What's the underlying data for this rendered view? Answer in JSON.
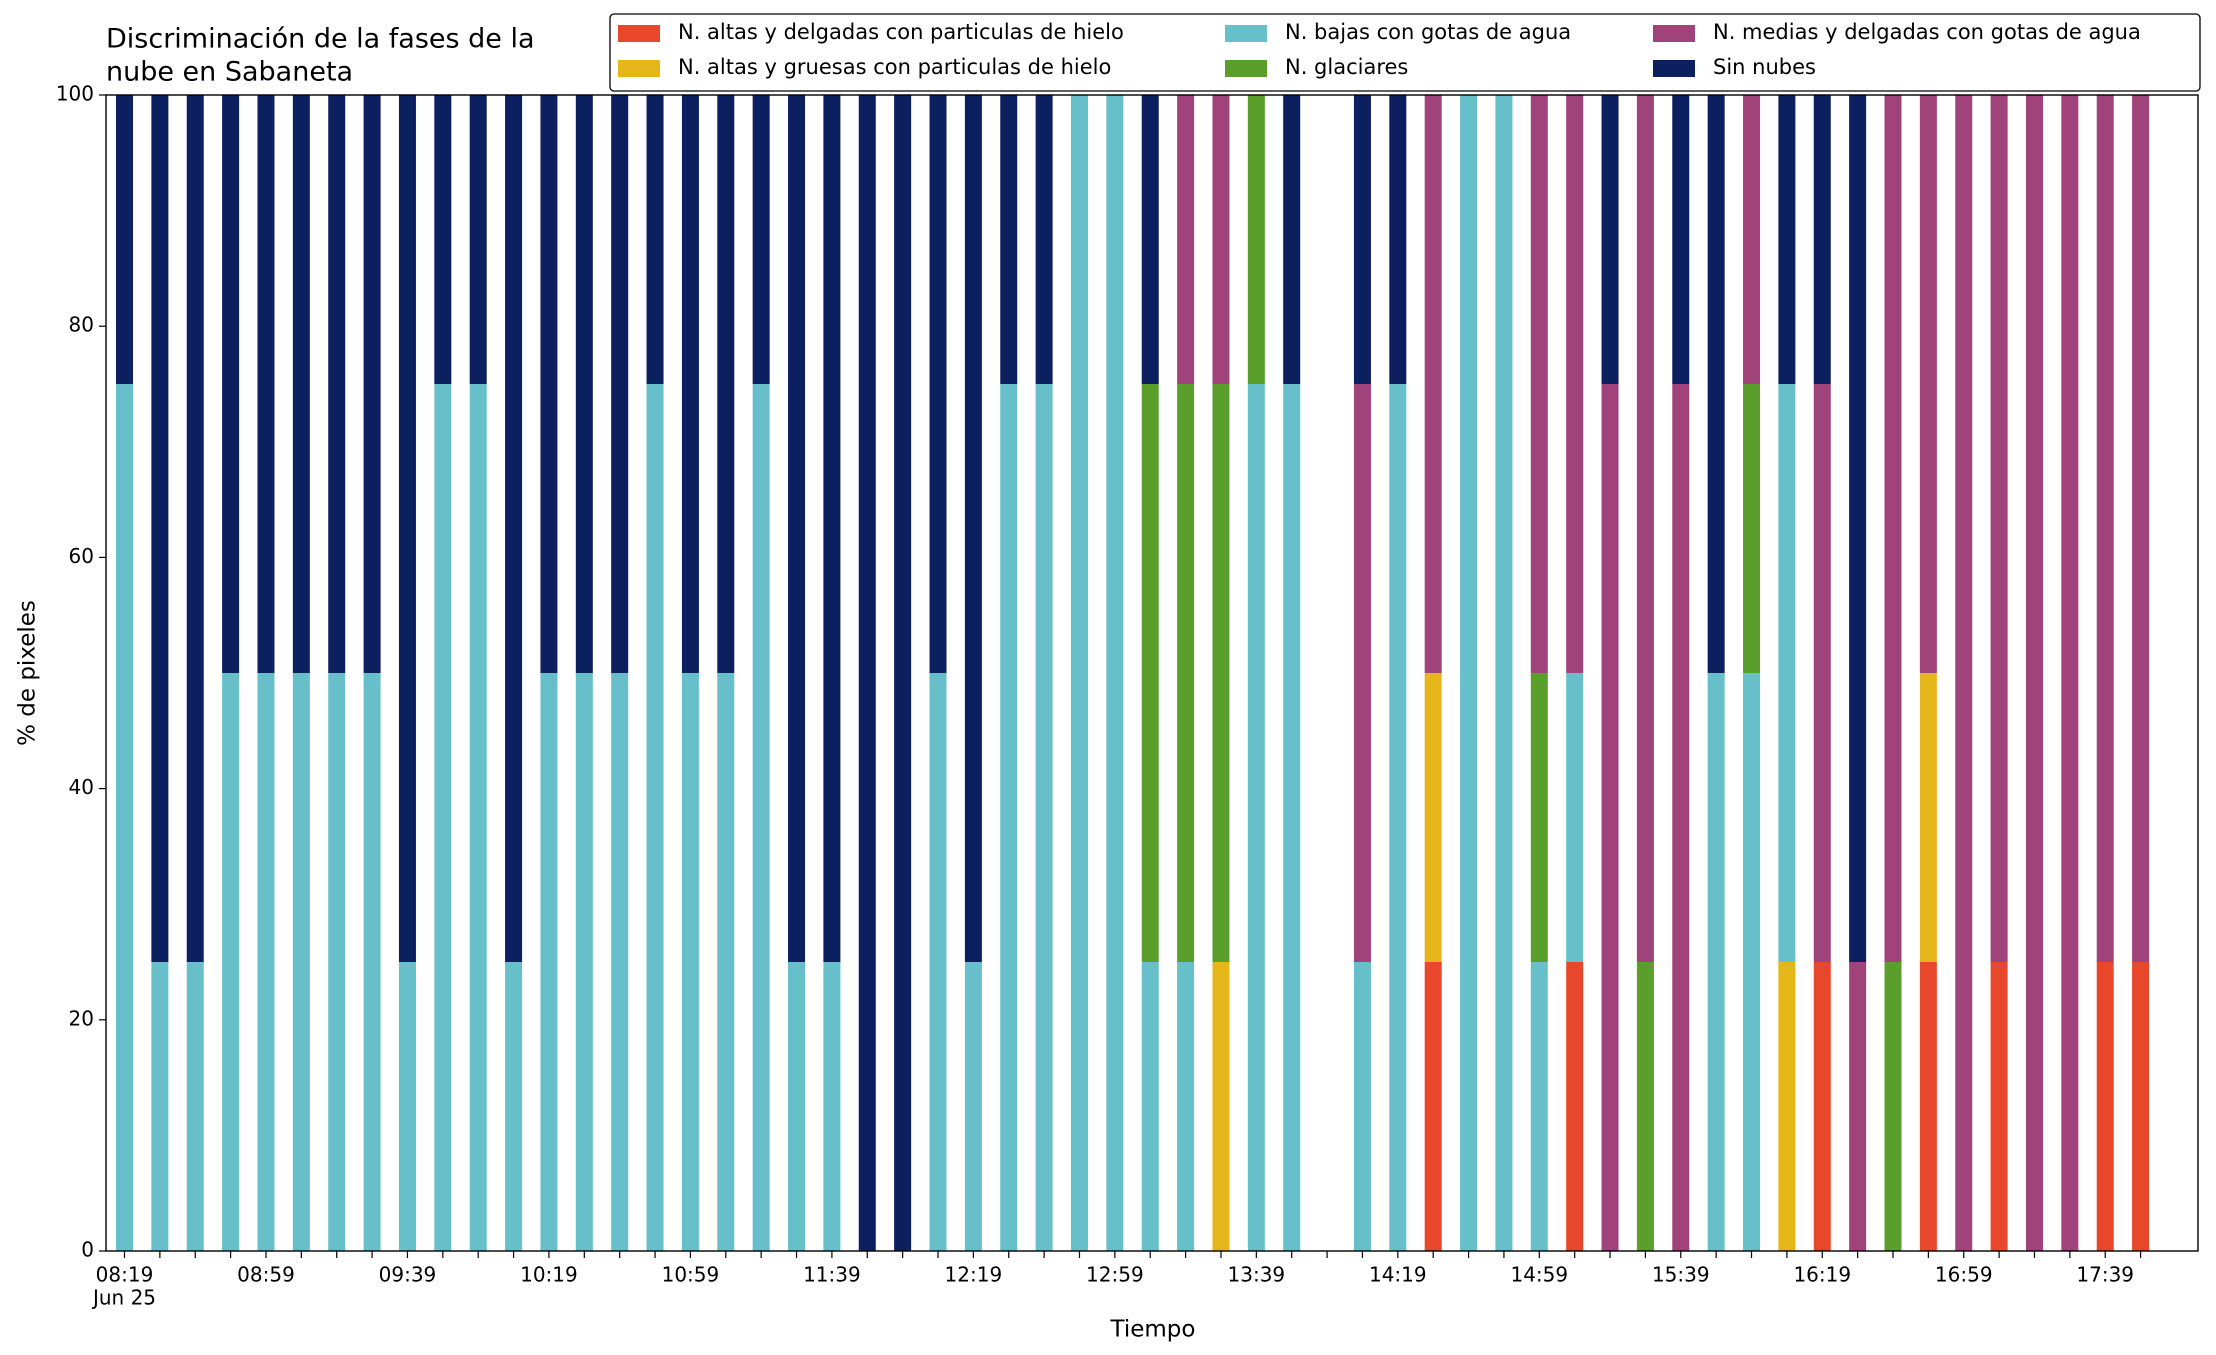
{
  "chart_data": {
    "type": "stacked_bar",
    "title": [
      "Discriminación de la fases de la",
      "nube en Sabaneta"
    ],
    "x_label": "Tiempo",
    "y_label": "% de pixeles",
    "date_label": "Jun 25",
    "categories": [
      "08:19",
      null,
      null,
      null,
      "08:59",
      null,
      null,
      null,
      "09:39",
      null,
      null,
      null,
      "10:19",
      null,
      null,
      null,
      "10:59",
      null,
      null,
      null,
      "11:39",
      null,
      null,
      null,
      "12:19",
      null,
      null,
      null,
      "12:59",
      null,
      null,
      null,
      "13:39",
      null,
      null,
      null,
      "14:19",
      null,
      null,
      null,
      "14:59",
      null,
      null,
      null,
      "15:39",
      null,
      null,
      null,
      "16:19",
      null,
      null,
      null,
      "16:59",
      null,
      null,
      null,
      "17:39",
      null
    ],
    "ylim": [
      0,
      100
    ],
    "yticks": [
      0,
      20,
      40,
      60,
      80,
      100
    ],
    "series": [
      {
        "name": "N. altas y delgadas con particulas de hielo",
        "color": "#e8472c",
        "values": [
          0,
          0,
          0,
          0,
          0,
          0,
          0,
          0,
          0,
          0,
          0,
          0,
          0,
          0,
          0,
          0,
          0,
          0,
          0,
          0,
          0,
          0,
          0,
          0,
          0,
          0,
          0,
          0,
          0,
          0,
          0,
          0,
          0,
          0,
          null,
          0,
          0,
          25,
          0,
          0,
          0,
          25,
          0,
          0,
          0,
          0,
          0,
          0,
          25,
          0,
          0,
          25,
          0,
          25,
          0,
          0,
          25,
          25
        ]
      },
      {
        "name": "N. altas y gruesas con particulas de hielo",
        "color": "#e5b61a",
        "values": [
          0,
          0,
          0,
          0,
          0,
          0,
          0,
          0,
          0,
          0,
          0,
          0,
          0,
          0,
          0,
          0,
          0,
          0,
          0,
          0,
          0,
          0,
          0,
          0,
          0,
          0,
          0,
          0,
          0,
          0,
          0,
          25,
          0,
          0,
          null,
          0,
          0,
          25,
          0,
          0,
          0,
          0,
          0,
          0,
          0,
          0,
          0,
          25,
          0,
          0,
          0,
          25,
          0,
          0,
          0,
          0,
          0,
          0
        ]
      },
      {
        "name": "N. bajas con gotas de agua",
        "color": "#67bfca",
        "values": [
          75,
          25,
          25,
          50,
          50,
          50,
          50,
          50,
          25,
          75,
          75,
          25,
          50,
          50,
          50,
          75,
          50,
          50,
          75,
          25,
          25,
          0,
          0,
          50,
          25,
          75,
          75,
          100,
          100,
          25,
          25,
          0,
          75,
          75,
          null,
          25,
          75,
          0,
          100,
          100,
          25,
          25,
          0,
          0,
          0,
          50,
          50,
          50,
          0,
          0,
          0,
          0,
          0,
          0,
          0,
          0,
          0,
          0
        ]
      },
      {
        "name": "N. glaciares",
        "color": "#5a9f2b",
        "values": [
          0,
          0,
          0,
          0,
          0,
          0,
          0,
          0,
          0,
          0,
          0,
          0,
          0,
          0,
          0,
          0,
          0,
          0,
          0,
          0,
          0,
          0,
          0,
          0,
          0,
          0,
          0,
          0,
          0,
          50,
          50,
          50,
          25,
          0,
          null,
          0,
          0,
          0,
          0,
          0,
          25,
          0,
          0,
          25,
          0,
          0,
          25,
          0,
          0,
          0,
          25,
          0,
          0,
          0,
          0,
          0,
          0,
          0
        ]
      },
      {
        "name": "N. medias y delgadas con gotas de agua",
        "color": "#a0437a",
        "values": [
          0,
          0,
          0,
          0,
          0,
          0,
          0,
          0,
          0,
          0,
          0,
          0,
          0,
          0,
          0,
          0,
          0,
          0,
          0,
          0,
          0,
          0,
          0,
          0,
          0,
          0,
          0,
          0,
          0,
          0,
          25,
          25,
          0,
          0,
          null,
          50,
          0,
          50,
          0,
          0,
          50,
          50,
          75,
          75,
          75,
          0,
          25,
          0,
          50,
          25,
          75,
          50,
          100,
          75,
          100,
          100,
          75,
          75
        ]
      },
      {
        "name": "Sin nubes",
        "color": "#0c1f5e",
        "values": [
          25,
          75,
          75,
          50,
          50,
          50,
          50,
          50,
          75,
          25,
          25,
          75,
          50,
          50,
          50,
          25,
          50,
          50,
          25,
          75,
          75,
          100,
          100,
          50,
          75,
          25,
          25,
          0,
          0,
          25,
          0,
          0,
          0,
          25,
          null,
          25,
          25,
          0,
          0,
          0,
          0,
          0,
          25,
          0,
          25,
          50,
          0,
          25,
          25,
          75,
          0,
          0,
          0,
          0,
          0,
          0,
          0,
          0
        ]
      }
    ]
  }
}
